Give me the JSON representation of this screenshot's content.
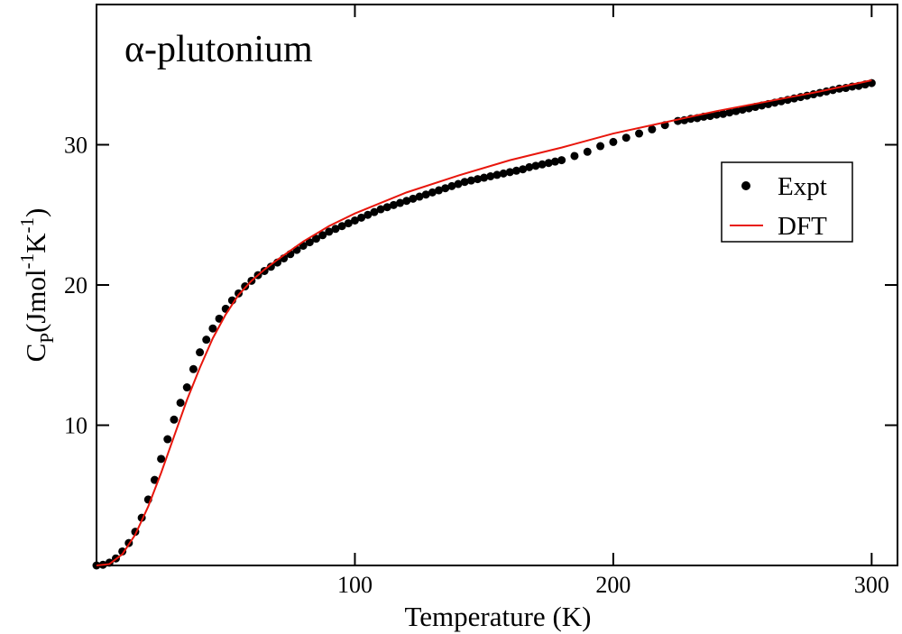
{
  "chart_data": {
    "type": "scatter-line",
    "annotation": "α-plutonium",
    "xlabel": "Temperature (K)",
    "ylabel": [
      "C",
      "P",
      "(Jmol",
      "-1",
      "K",
      "-1",
      ")"
    ],
    "xlim": [
      0,
      310
    ],
    "ylim": [
      0,
      40
    ],
    "xticks": [
      100,
      200,
      300
    ],
    "yticks": [
      10,
      20,
      30
    ],
    "legend": "right",
    "series": [
      {
        "name": "Expt",
        "color": "#000000",
        "style": "markers",
        "x": [
          0,
          2.5,
          5,
          7.5,
          10,
          12.5,
          15,
          17.5,
          20,
          22.5,
          25,
          27.5,
          30,
          32.5,
          35,
          37.5,
          40,
          42.5,
          45,
          47.5,
          50,
          52.5,
          55,
          57.5,
          60,
          62.5,
          65,
          67.5,
          70,
          72.5,
          75,
          77.5,
          80,
          82.5,
          85,
          87.5,
          90,
          92.5,
          95,
          97.5,
          100,
          102.5,
          105,
          107.5,
          110,
          112.5,
          115,
          117.5,
          120,
          122.5,
          125,
          127.5,
          130,
          132.5,
          135,
          137.5,
          140,
          142.5,
          145,
          147.5,
          150,
          152.5,
          155,
          157.5,
          160,
          162.5,
          165,
          167.5,
          170,
          172.5,
          175,
          177.5,
          180,
          185,
          190,
          195,
          200,
          205,
          210,
          215,
          220,
          225,
          227.5,
          230,
          232.5,
          235,
          237.5,
          240,
          242.5,
          245,
          247.5,
          250,
          252.5,
          255,
          257.5,
          260,
          262.5,
          265,
          267.5,
          270,
          272.5,
          275,
          277.5,
          280,
          282.5,
          285,
          287.5,
          290,
          292.5,
          295,
          297.5,
          300
        ],
        "values": [
          0,
          0.05,
          0.2,
          0.5,
          1.0,
          1.6,
          2.4,
          3.4,
          4.7,
          6.1,
          7.6,
          9.0,
          10.4,
          11.6,
          12.7,
          14.0,
          15.2,
          16.1,
          16.9,
          17.6,
          18.3,
          18.9,
          19.4,
          19.9,
          20.3,
          20.7,
          21.0,
          21.3,
          21.6,
          21.9,
          22.2,
          22.5,
          22.8,
          23.05,
          23.3,
          23.55,
          23.8,
          24.0,
          24.2,
          24.4,
          24.6,
          24.8,
          25.0,
          25.2,
          25.4,
          25.55,
          25.7,
          25.85,
          26.0,
          26.15,
          26.3,
          26.45,
          26.6,
          26.75,
          26.9,
          27.05,
          27.2,
          27.35,
          27.45,
          27.55,
          27.65,
          27.75,
          27.85,
          27.95,
          28.05,
          28.15,
          28.25,
          28.4,
          28.5,
          28.6,
          28.7,
          28.8,
          28.9,
          29.2,
          29.5,
          29.9,
          30.2,
          30.5,
          30.8,
          31.1,
          31.4,
          31.7,
          31.75,
          31.85,
          31.9,
          32.0,
          32.05,
          32.15,
          32.2,
          32.3,
          32.4,
          32.5,
          32.6,
          32.7,
          32.8,
          32.9,
          33.0,
          33.1,
          33.2,
          33.3,
          33.4,
          33.5,
          33.6,
          33.7,
          33.8,
          33.9,
          34.0,
          34.05,
          34.15,
          34.2,
          34.3,
          34.4
        ]
      },
      {
        "name": "DFT",
        "color": "#e8160c",
        "style": "line",
        "x": [
          0,
          5,
          10,
          15,
          20,
          25,
          30,
          35,
          40,
          45,
          50,
          55,
          60,
          65,
          70,
          80,
          90,
          100,
          120,
          140,
          160,
          180,
          200,
          220,
          240,
          260,
          280,
          300
        ],
        "values": [
          0,
          0.1,
          0.8,
          2.2,
          4.2,
          6.6,
          9.2,
          11.8,
          14.1,
          16.2,
          17.9,
          19.3,
          20.3,
          21.1,
          21.8,
          23.1,
          24.2,
          25.1,
          26.6,
          27.8,
          28.9,
          29.8,
          30.8,
          31.6,
          32.4,
          33.1,
          33.8,
          34.6
        ]
      }
    ]
  }
}
